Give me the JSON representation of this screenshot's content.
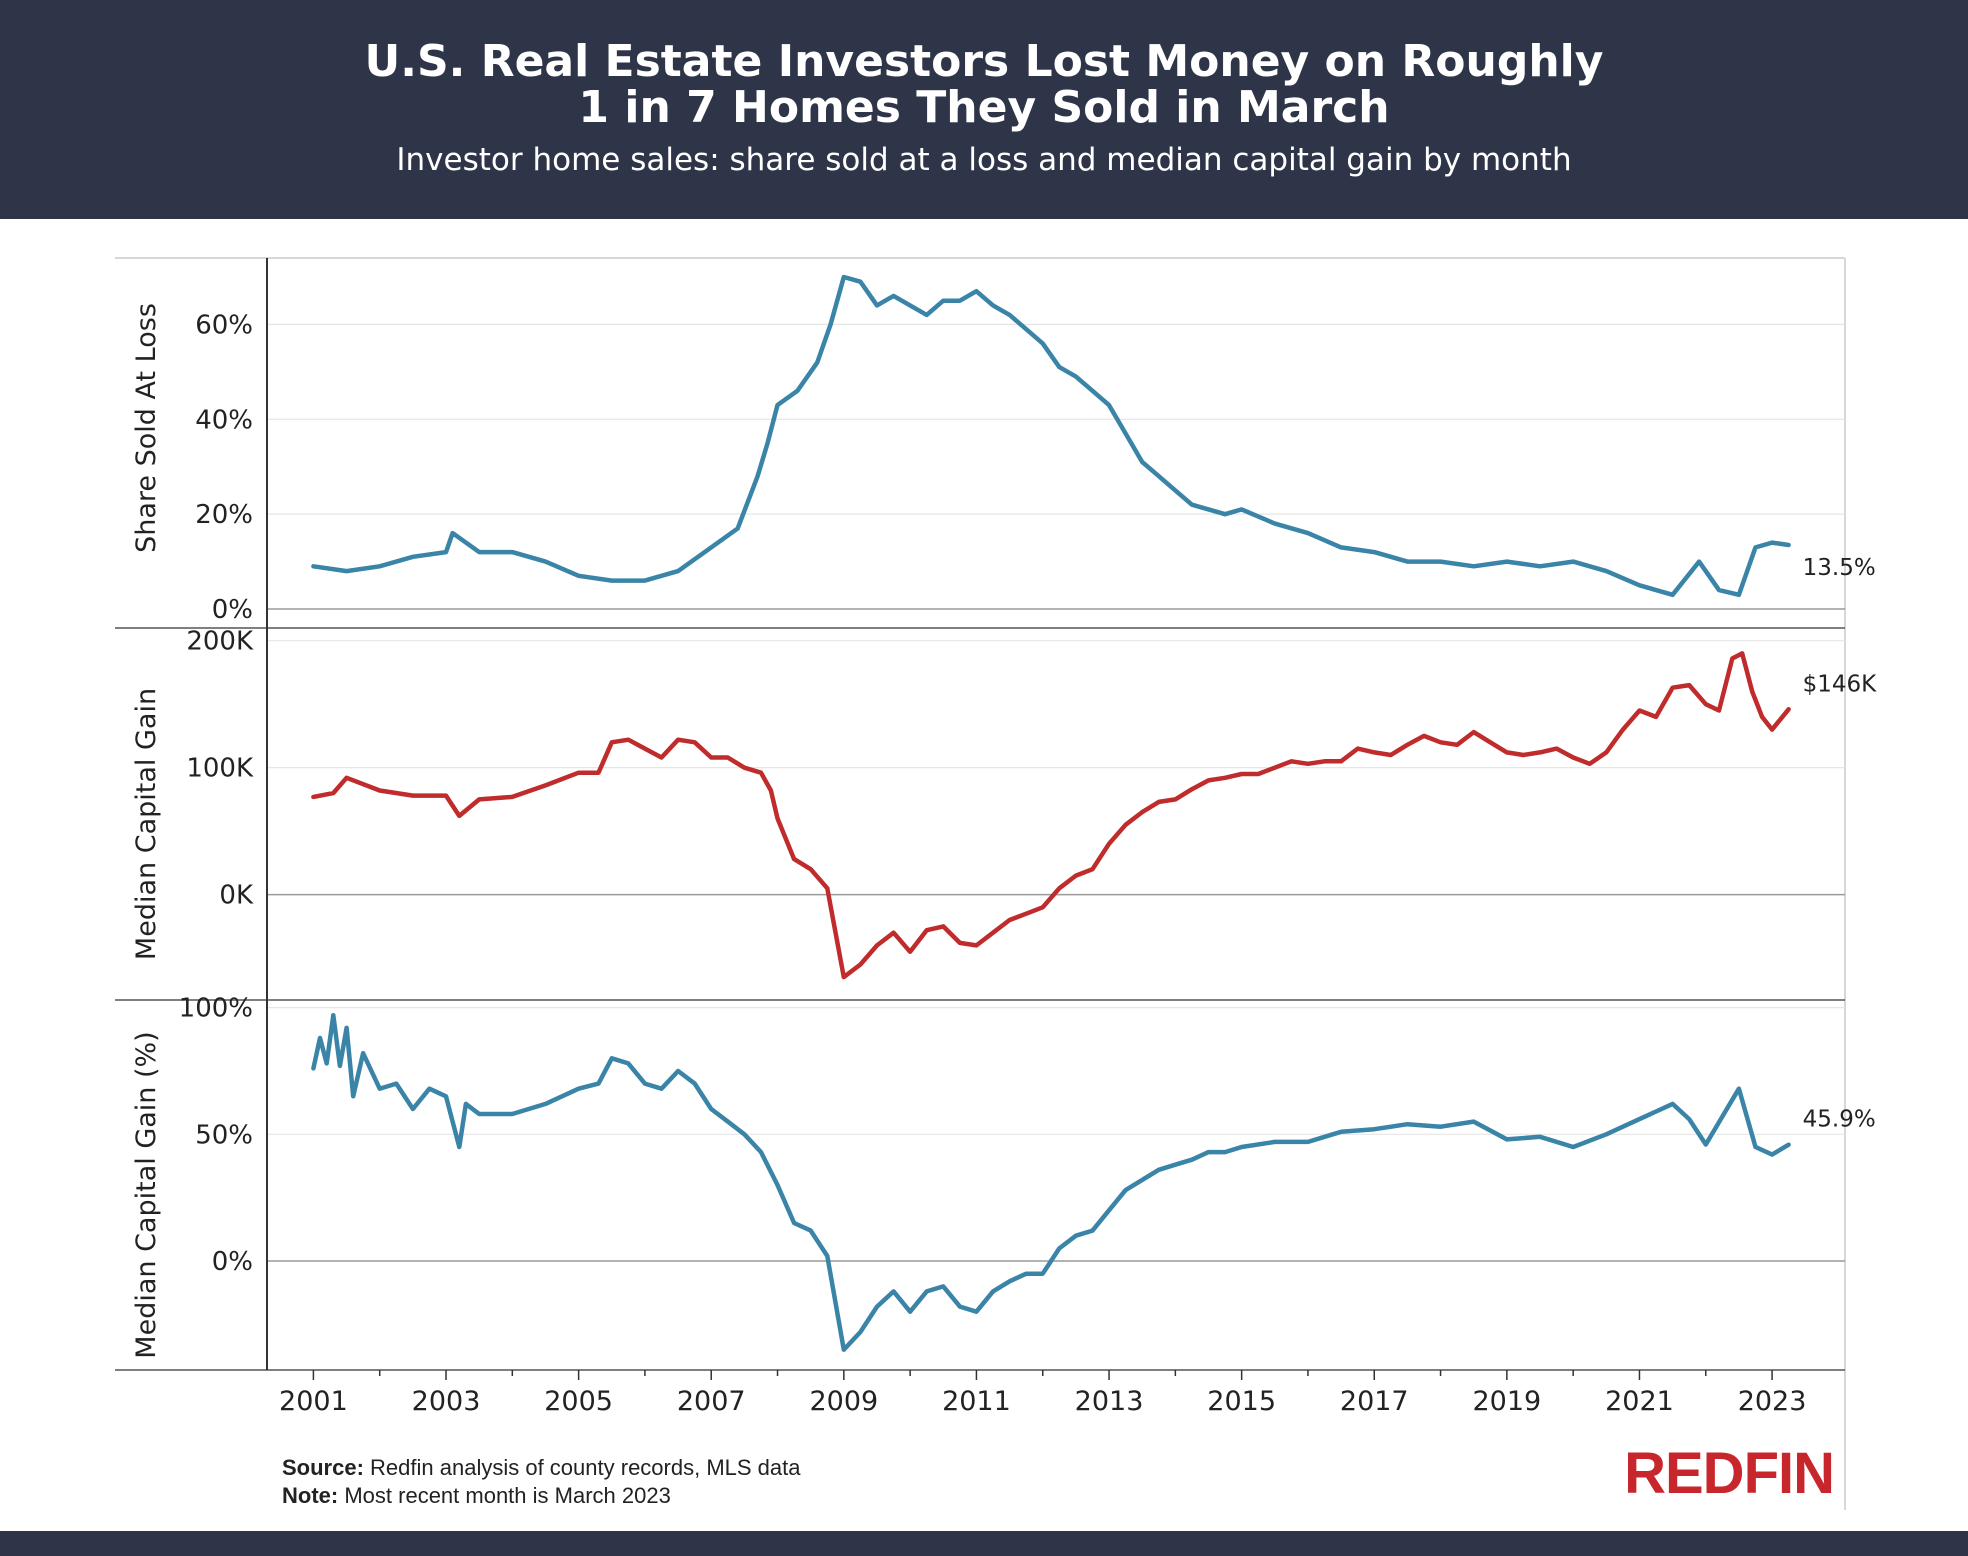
{
  "header": {
    "title_line1": "U.S. Real Estate Investors Lost Money on Roughly",
    "title_line2": "1 in 7 Homes They Sold in March",
    "subtitle": "Investor home sales: share sold at a loss and median capital gain by month"
  },
  "footer": {
    "source_label": "Source:",
    "source_text": "Redfin analysis of county records, MLS data",
    "note_label": "Note:",
    "note_text": "Most recent month is March 2023",
    "logo": "REDFIN"
  },
  "colors": {
    "header_bg": "#2f3548",
    "blue_line": "#3a84a8",
    "red_line": "#c02b2b",
    "brand_red": "#c8262d"
  },
  "chart_data": [
    {
      "type": "line",
      "ylabel": "Share Sold At Loss",
      "ytick_labels": [
        "0%",
        "20%",
        "40%",
        "60%"
      ],
      "yticks": [
        0,
        20,
        40,
        60
      ],
      "ylim": [
        -4,
        74
      ],
      "end_label": "13.5%",
      "color": "#3a84a8",
      "series": [
        {
          "points": [
            [
              2001.0,
              9
            ],
            [
              2001.5,
              8
            ],
            [
              2002.0,
              9
            ],
            [
              2002.5,
              11
            ],
            [
              2003.0,
              12
            ],
            [
              2003.1,
              16
            ],
            [
              2003.5,
              12
            ],
            [
              2004.0,
              12
            ],
            [
              2004.5,
              10
            ],
            [
              2005.0,
              7
            ],
            [
              2005.5,
              6
            ],
            [
              2006.0,
              6
            ],
            [
              2006.5,
              8
            ],
            [
              2007.0,
              13
            ],
            [
              2007.4,
              17
            ],
            [
              2007.7,
              28
            ],
            [
              2007.85,
              35
            ],
            [
              2008.0,
              43
            ],
            [
              2008.3,
              46
            ],
            [
              2008.6,
              52
            ],
            [
              2008.8,
              60
            ],
            [
              2009.0,
              70
            ],
            [
              2009.25,
              69
            ],
            [
              2009.5,
              64
            ],
            [
              2009.75,
              66
            ],
            [
              2010.0,
              64
            ],
            [
              2010.25,
              62
            ],
            [
              2010.5,
              65
            ],
            [
              2010.75,
              65
            ],
            [
              2011.0,
              67
            ],
            [
              2011.25,
              64
            ],
            [
              2011.5,
              62
            ],
            [
              2011.75,
              59
            ],
            [
              2012.0,
              56
            ],
            [
              2012.25,
              51
            ],
            [
              2012.5,
              49
            ],
            [
              2012.75,
              46
            ],
            [
              2013.0,
              43
            ],
            [
              2013.25,
              37
            ],
            [
              2013.5,
              31
            ],
            [
              2013.75,
              28
            ],
            [
              2014.0,
              25
            ],
            [
              2014.25,
              22
            ],
            [
              2014.5,
              21
            ],
            [
              2014.75,
              20
            ],
            [
              2015.0,
              21
            ],
            [
              2015.5,
              18
            ],
            [
              2016.0,
              16
            ],
            [
              2016.5,
              13
            ],
            [
              2017.0,
              12
            ],
            [
              2017.5,
              10
            ],
            [
              2018.0,
              10
            ],
            [
              2018.5,
              9
            ],
            [
              2019.0,
              10
            ],
            [
              2019.5,
              9
            ],
            [
              2020.0,
              10
            ],
            [
              2020.5,
              8
            ],
            [
              2021.0,
              5
            ],
            [
              2021.5,
              3
            ],
            [
              2021.9,
              10
            ],
            [
              2022.2,
              4
            ],
            [
              2022.5,
              3
            ],
            [
              2022.75,
              13
            ],
            [
              2023.0,
              14
            ],
            [
              2023.25,
              13.5
            ]
          ]
        }
      ]
    },
    {
      "type": "line",
      "ylabel": "Median Capital Gain",
      "ytick_labels": [
        "0K",
        "100K",
        "200K"
      ],
      "yticks": [
        0,
        100000,
        200000
      ],
      "ylim": [
        -83000,
        210000
      ],
      "end_label": "$146K",
      "color": "#c02b2b",
      "series": [
        {
          "points": [
            [
              2001.0,
              77000
            ],
            [
              2001.3,
              80000
            ],
            [
              2001.5,
              92000
            ],
            [
              2002.0,
              82000
            ],
            [
              2002.5,
              78000
            ],
            [
              2003.0,
              78000
            ],
            [
              2003.2,
              62000
            ],
            [
              2003.5,
              75000
            ],
            [
              2004.0,
              77000
            ],
            [
              2004.5,
              86000
            ],
            [
              2005.0,
              96000
            ],
            [
              2005.3,
              96000
            ],
            [
              2005.5,
              120000
            ],
            [
              2005.75,
              122000
            ],
            [
              2006.0,
              115000
            ],
            [
              2006.25,
              108000
            ],
            [
              2006.5,
              122000
            ],
            [
              2006.75,
              120000
            ],
            [
              2007.0,
              108000
            ],
            [
              2007.25,
              108000
            ],
            [
              2007.5,
              100000
            ],
            [
              2007.75,
              96000
            ],
            [
              2007.9,
              82000
            ],
            [
              2008.0,
              60000
            ],
            [
              2008.25,
              28000
            ],
            [
              2008.5,
              20000
            ],
            [
              2008.75,
              5000
            ],
            [
              2009.0,
              -65000
            ],
            [
              2009.25,
              -55000
            ],
            [
              2009.5,
              -40000
            ],
            [
              2009.75,
              -30000
            ],
            [
              2010.0,
              -45000
            ],
            [
              2010.25,
              -28000
            ],
            [
              2010.5,
              -25000
            ],
            [
              2010.75,
              -38000
            ],
            [
              2011.0,
              -40000
            ],
            [
              2011.25,
              -30000
            ],
            [
              2011.5,
              -20000
            ],
            [
              2011.75,
              -15000
            ],
            [
              2012.0,
              -10000
            ],
            [
              2012.25,
              5000
            ],
            [
              2012.5,
              15000
            ],
            [
              2012.75,
              20000
            ],
            [
              2013.0,
              40000
            ],
            [
              2013.25,
              55000
            ],
            [
              2013.5,
              65000
            ],
            [
              2013.75,
              73000
            ],
            [
              2014.0,
              75000
            ],
            [
              2014.25,
              83000
            ],
            [
              2014.5,
              90000
            ],
            [
              2014.75,
              92000
            ],
            [
              2015.0,
              95000
            ],
            [
              2015.25,
              95000
            ],
            [
              2015.5,
              100000
            ],
            [
              2015.75,
              105000
            ],
            [
              2016.0,
              103000
            ],
            [
              2016.25,
              105000
            ],
            [
              2016.5,
              105000
            ],
            [
              2016.75,
              115000
            ],
            [
              2017.0,
              112000
            ],
            [
              2017.25,
              110000
            ],
            [
              2017.5,
              118000
            ],
            [
              2017.75,
              125000
            ],
            [
              2018.0,
              120000
            ],
            [
              2018.25,
              118000
            ],
            [
              2018.5,
              128000
            ],
            [
              2018.75,
              120000
            ],
            [
              2019.0,
              112000
            ],
            [
              2019.25,
              110000
            ],
            [
              2019.5,
              112000
            ],
            [
              2019.75,
              115000
            ],
            [
              2020.0,
              108000
            ],
            [
              2020.25,
              103000
            ],
            [
              2020.5,
              112000
            ],
            [
              2020.75,
              130000
            ],
            [
              2021.0,
              145000
            ],
            [
              2021.25,
              140000
            ],
            [
              2021.5,
              163000
            ],
            [
              2021.75,
              165000
            ],
            [
              2022.0,
              150000
            ],
            [
              2022.2,
              145000
            ],
            [
              2022.4,
              186000
            ],
            [
              2022.55,
              190000
            ],
            [
              2022.7,
              160000
            ],
            [
              2022.85,
              140000
            ],
            [
              2023.0,
              130000
            ],
            [
              2023.25,
              146000
            ]
          ]
        }
      ]
    },
    {
      "type": "line",
      "ylabel": "Median Capital Gain (%)",
      "ytick_labels": [
        "0%",
        "50%",
        "100%"
      ],
      "yticks": [
        0,
        50,
        100
      ],
      "ylim": [
        -43,
        103
      ],
      "end_label": "45.9%",
      "color": "#3a84a8",
      "series": [
        {
          "points": [
            [
              2001.0,
              76
            ],
            [
              2001.1,
              88
            ],
            [
              2001.2,
              78
            ],
            [
              2001.3,
              97
            ],
            [
              2001.4,
              77
            ],
            [
              2001.5,
              92
            ],
            [
              2001.6,
              65
            ],
            [
              2001.75,
              82
            ],
            [
              2002.0,
              68
            ],
            [
              2002.25,
              70
            ],
            [
              2002.5,
              60
            ],
            [
              2002.75,
              68
            ],
            [
              2003.0,
              65
            ],
            [
              2003.1,
              55
            ],
            [
              2003.2,
              45
            ],
            [
              2003.3,
              62
            ],
            [
              2003.5,
              58
            ],
            [
              2004.0,
              58
            ],
            [
              2004.5,
              62
            ],
            [
              2005.0,
              68
            ],
            [
              2005.3,
              70
            ],
            [
              2005.5,
              80
            ],
            [
              2005.75,
              78
            ],
            [
              2006.0,
              70
            ],
            [
              2006.25,
              68
            ],
            [
              2006.5,
              75
            ],
            [
              2006.75,
              70
            ],
            [
              2007.0,
              60
            ],
            [
              2007.25,
              55
            ],
            [
              2007.5,
              50
            ],
            [
              2007.75,
              43
            ],
            [
              2008.0,
              30
            ],
            [
              2008.25,
              15
            ],
            [
              2008.5,
              12
            ],
            [
              2008.75,
              2
            ],
            [
              2009.0,
              -35
            ],
            [
              2009.25,
              -28
            ],
            [
              2009.5,
              -18
            ],
            [
              2009.75,
              -12
            ],
            [
              2010.0,
              -20
            ],
            [
              2010.25,
              -12
            ],
            [
              2010.5,
              -10
            ],
            [
              2010.75,
              -18
            ],
            [
              2011.0,
              -20
            ],
            [
              2011.25,
              -12
            ],
            [
              2011.5,
              -8
            ],
            [
              2011.75,
              -5
            ],
            [
              2012.0,
              -5
            ],
            [
              2012.25,
              5
            ],
            [
              2012.5,
              10
            ],
            [
              2012.75,
              12
            ],
            [
              2013.0,
              20
            ],
            [
              2013.25,
              28
            ],
            [
              2013.5,
              32
            ],
            [
              2013.75,
              36
            ],
            [
              2014.0,
              38
            ],
            [
              2014.25,
              40
            ],
            [
              2014.5,
              43
            ],
            [
              2014.75,
              43
            ],
            [
              2015.0,
              45
            ],
            [
              2015.5,
              47
            ],
            [
              2016.0,
              47
            ],
            [
              2016.5,
              51
            ],
            [
              2017.0,
              52
            ],
            [
              2017.5,
              54
            ],
            [
              2018.0,
              53
            ],
            [
              2018.5,
              55
            ],
            [
              2019.0,
              48
            ],
            [
              2019.5,
              49
            ],
            [
              2020.0,
              45
            ],
            [
              2020.5,
              50
            ],
            [
              2021.0,
              56
            ],
            [
              2021.5,
              62
            ],
            [
              2021.75,
              56
            ],
            [
              2022.0,
              46
            ],
            [
              2022.25,
              57
            ],
            [
              2022.5,
              68
            ],
            [
              2022.75,
              45
            ],
            [
              2023.0,
              42
            ],
            [
              2023.25,
              45.9
            ]
          ]
        }
      ]
    }
  ],
  "x_axis": {
    "tick_labels": [
      "2001",
      "2003",
      "2005",
      "2007",
      "2009",
      "2011",
      "2013",
      "2015",
      "2017",
      "2019",
      "2021",
      "2023"
    ],
    "xlim": [
      2000.3,
      2024.1
    ]
  }
}
